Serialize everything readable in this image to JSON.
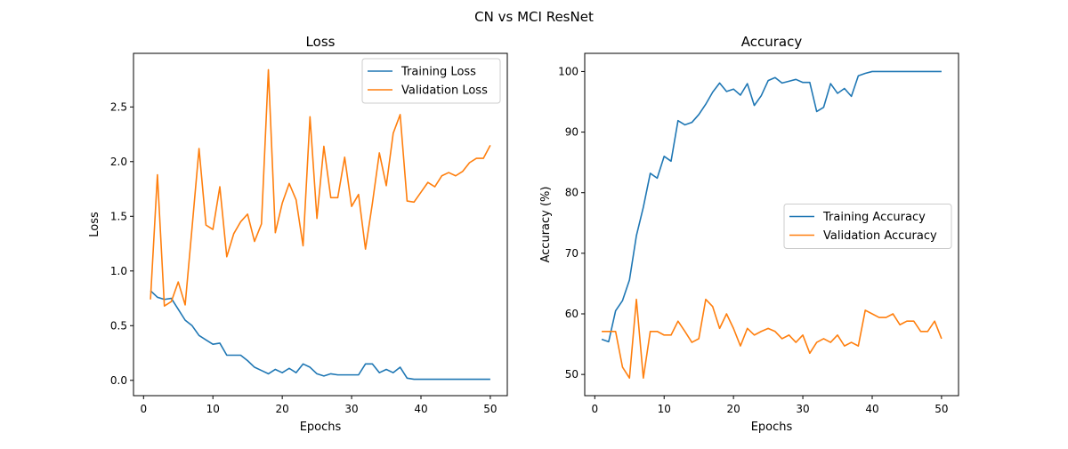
{
  "suptitle": "CN vs MCI ResNet",
  "chart_data": [
    {
      "type": "line",
      "title": "Loss",
      "xlabel": "Epochs",
      "ylabel": "Loss",
      "xlim": [
        -1.45,
        52.45
      ],
      "ylim": [
        -0.14,
        2.99
      ],
      "xticks": [
        0,
        10,
        20,
        30,
        40,
        50
      ],
      "yticks": [
        0.0,
        0.5,
        1.0,
        1.5,
        2.0,
        2.5
      ],
      "ytick_labels": [
        "0.0",
        "0.5",
        "1.0",
        "1.5",
        "2.0",
        "2.5"
      ],
      "grid": false,
      "legend": "top-right",
      "x": [
        1,
        2,
        3,
        4,
        5,
        6,
        7,
        8,
        9,
        10,
        11,
        12,
        13,
        14,
        15,
        16,
        17,
        18,
        19,
        20,
        21,
        22,
        23,
        24,
        25,
        26,
        27,
        28,
        29,
        30,
        31,
        32,
        33,
        34,
        35,
        36,
        37,
        38,
        39,
        40,
        41,
        42,
        43,
        44,
        45,
        46,
        47,
        48,
        49,
        50
      ],
      "series": [
        {
          "name": "Training Loss",
          "color": "#1f77b4",
          "values": [
            0.82,
            0.76,
            0.74,
            0.75,
            0.65,
            0.55,
            0.5,
            0.41,
            0.37,
            0.33,
            0.34,
            0.23,
            0.23,
            0.23,
            0.18,
            0.12,
            0.09,
            0.06,
            0.1,
            0.07,
            0.11,
            0.07,
            0.15,
            0.12,
            0.06,
            0.04,
            0.06,
            0.05,
            0.05,
            0.05,
            0.05,
            0.15,
            0.15,
            0.07,
            0.1,
            0.07,
            0.12,
            0.02,
            0.01,
            0.01,
            0.01,
            0.01,
            0.01,
            0.01,
            0.01,
            0.01,
            0.01,
            0.01,
            0.01,
            0.01
          ]
        },
        {
          "name": "Validation Loss",
          "color": "#ff7f0e",
          "values": [
            0.74,
            1.88,
            0.68,
            0.72,
            0.9,
            0.69,
            1.4,
            2.12,
            1.42,
            1.38,
            1.77,
            1.13,
            1.34,
            1.45,
            1.52,
            1.27,
            1.43,
            2.84,
            1.35,
            1.62,
            1.8,
            1.65,
            1.23,
            2.41,
            1.48,
            2.14,
            1.67,
            1.67,
            2.04,
            1.59,
            1.7,
            1.2,
            1.62,
            2.08,
            1.78,
            2.26,
            2.43,
            1.64,
            1.63,
            1.72,
            1.81,
            1.77,
            1.87,
            1.9,
            1.87,
            1.91,
            1.99,
            2.03,
            2.03,
            2.15
          ]
        }
      ]
    },
    {
      "type": "line",
      "title": "Accuracy",
      "xlabel": "Epochs",
      "ylabel": "Accuracy (%)",
      "xlim": [
        -1.45,
        52.45
      ],
      "ylim": [
        46.5,
        103.0
      ],
      "xticks": [
        0,
        10,
        20,
        30,
        40,
        50
      ],
      "yticks": [
        50,
        60,
        70,
        80,
        90,
        100
      ],
      "ytick_labels": [
        "50",
        "60",
        "70",
        "80",
        "90",
        "100"
      ],
      "grid": false,
      "legend": "center-right",
      "x": [
        1,
        2,
        3,
        4,
        5,
        6,
        7,
        8,
        9,
        10,
        11,
        12,
        13,
        14,
        15,
        16,
        17,
        18,
        19,
        20,
        21,
        22,
        23,
        24,
        25,
        26,
        27,
        28,
        29,
        30,
        31,
        32,
        33,
        34,
        35,
        36,
        37,
        38,
        39,
        40,
        41,
        42,
        43,
        44,
        45,
        46,
        47,
        48,
        49,
        50
      ],
      "series": [
        {
          "name": "Training Accuracy",
          "color": "#1f77b4",
          "values": [
            55.8,
            55.4,
            60.5,
            62.2,
            65.6,
            72.9,
            77.6,
            83.2,
            82.4,
            86.0,
            85.2,
            91.9,
            91.2,
            91.6,
            92.9,
            94.6,
            96.6,
            98.1,
            96.7,
            97.1,
            96.1,
            98.0,
            94.4,
            96.0,
            98.5,
            99.0,
            98.1,
            98.4,
            98.7,
            98.2,
            98.2,
            93.4,
            94.1,
            98.0,
            96.4,
            97.2,
            95.9,
            99.3,
            99.7,
            100,
            100,
            100,
            100,
            100,
            100,
            100,
            100,
            100,
            100,
            100
          ]
        },
        {
          "name": "Validation Accuracy",
          "color": "#ff7f0e",
          "values": [
            57.1,
            57.1,
            57.1,
            51.2,
            49.4,
            62.4,
            49.4,
            57.1,
            57.1,
            56.5,
            56.5,
            58.8,
            57.1,
            55.3,
            55.9,
            62.4,
            61.2,
            57.6,
            60.0,
            57.6,
            54.7,
            57.6,
            56.5,
            57.1,
            57.6,
            57.1,
            55.9,
            56.5,
            55.3,
            56.5,
            53.5,
            55.3,
            55.9,
            55.3,
            56.5,
            54.7,
            55.3,
            54.7,
            60.6,
            60.0,
            59.4,
            59.4,
            60.0,
            58.2,
            58.8,
            58.8,
            57.1,
            57.1,
            58.8,
            55.9
          ]
        }
      ]
    }
  ]
}
